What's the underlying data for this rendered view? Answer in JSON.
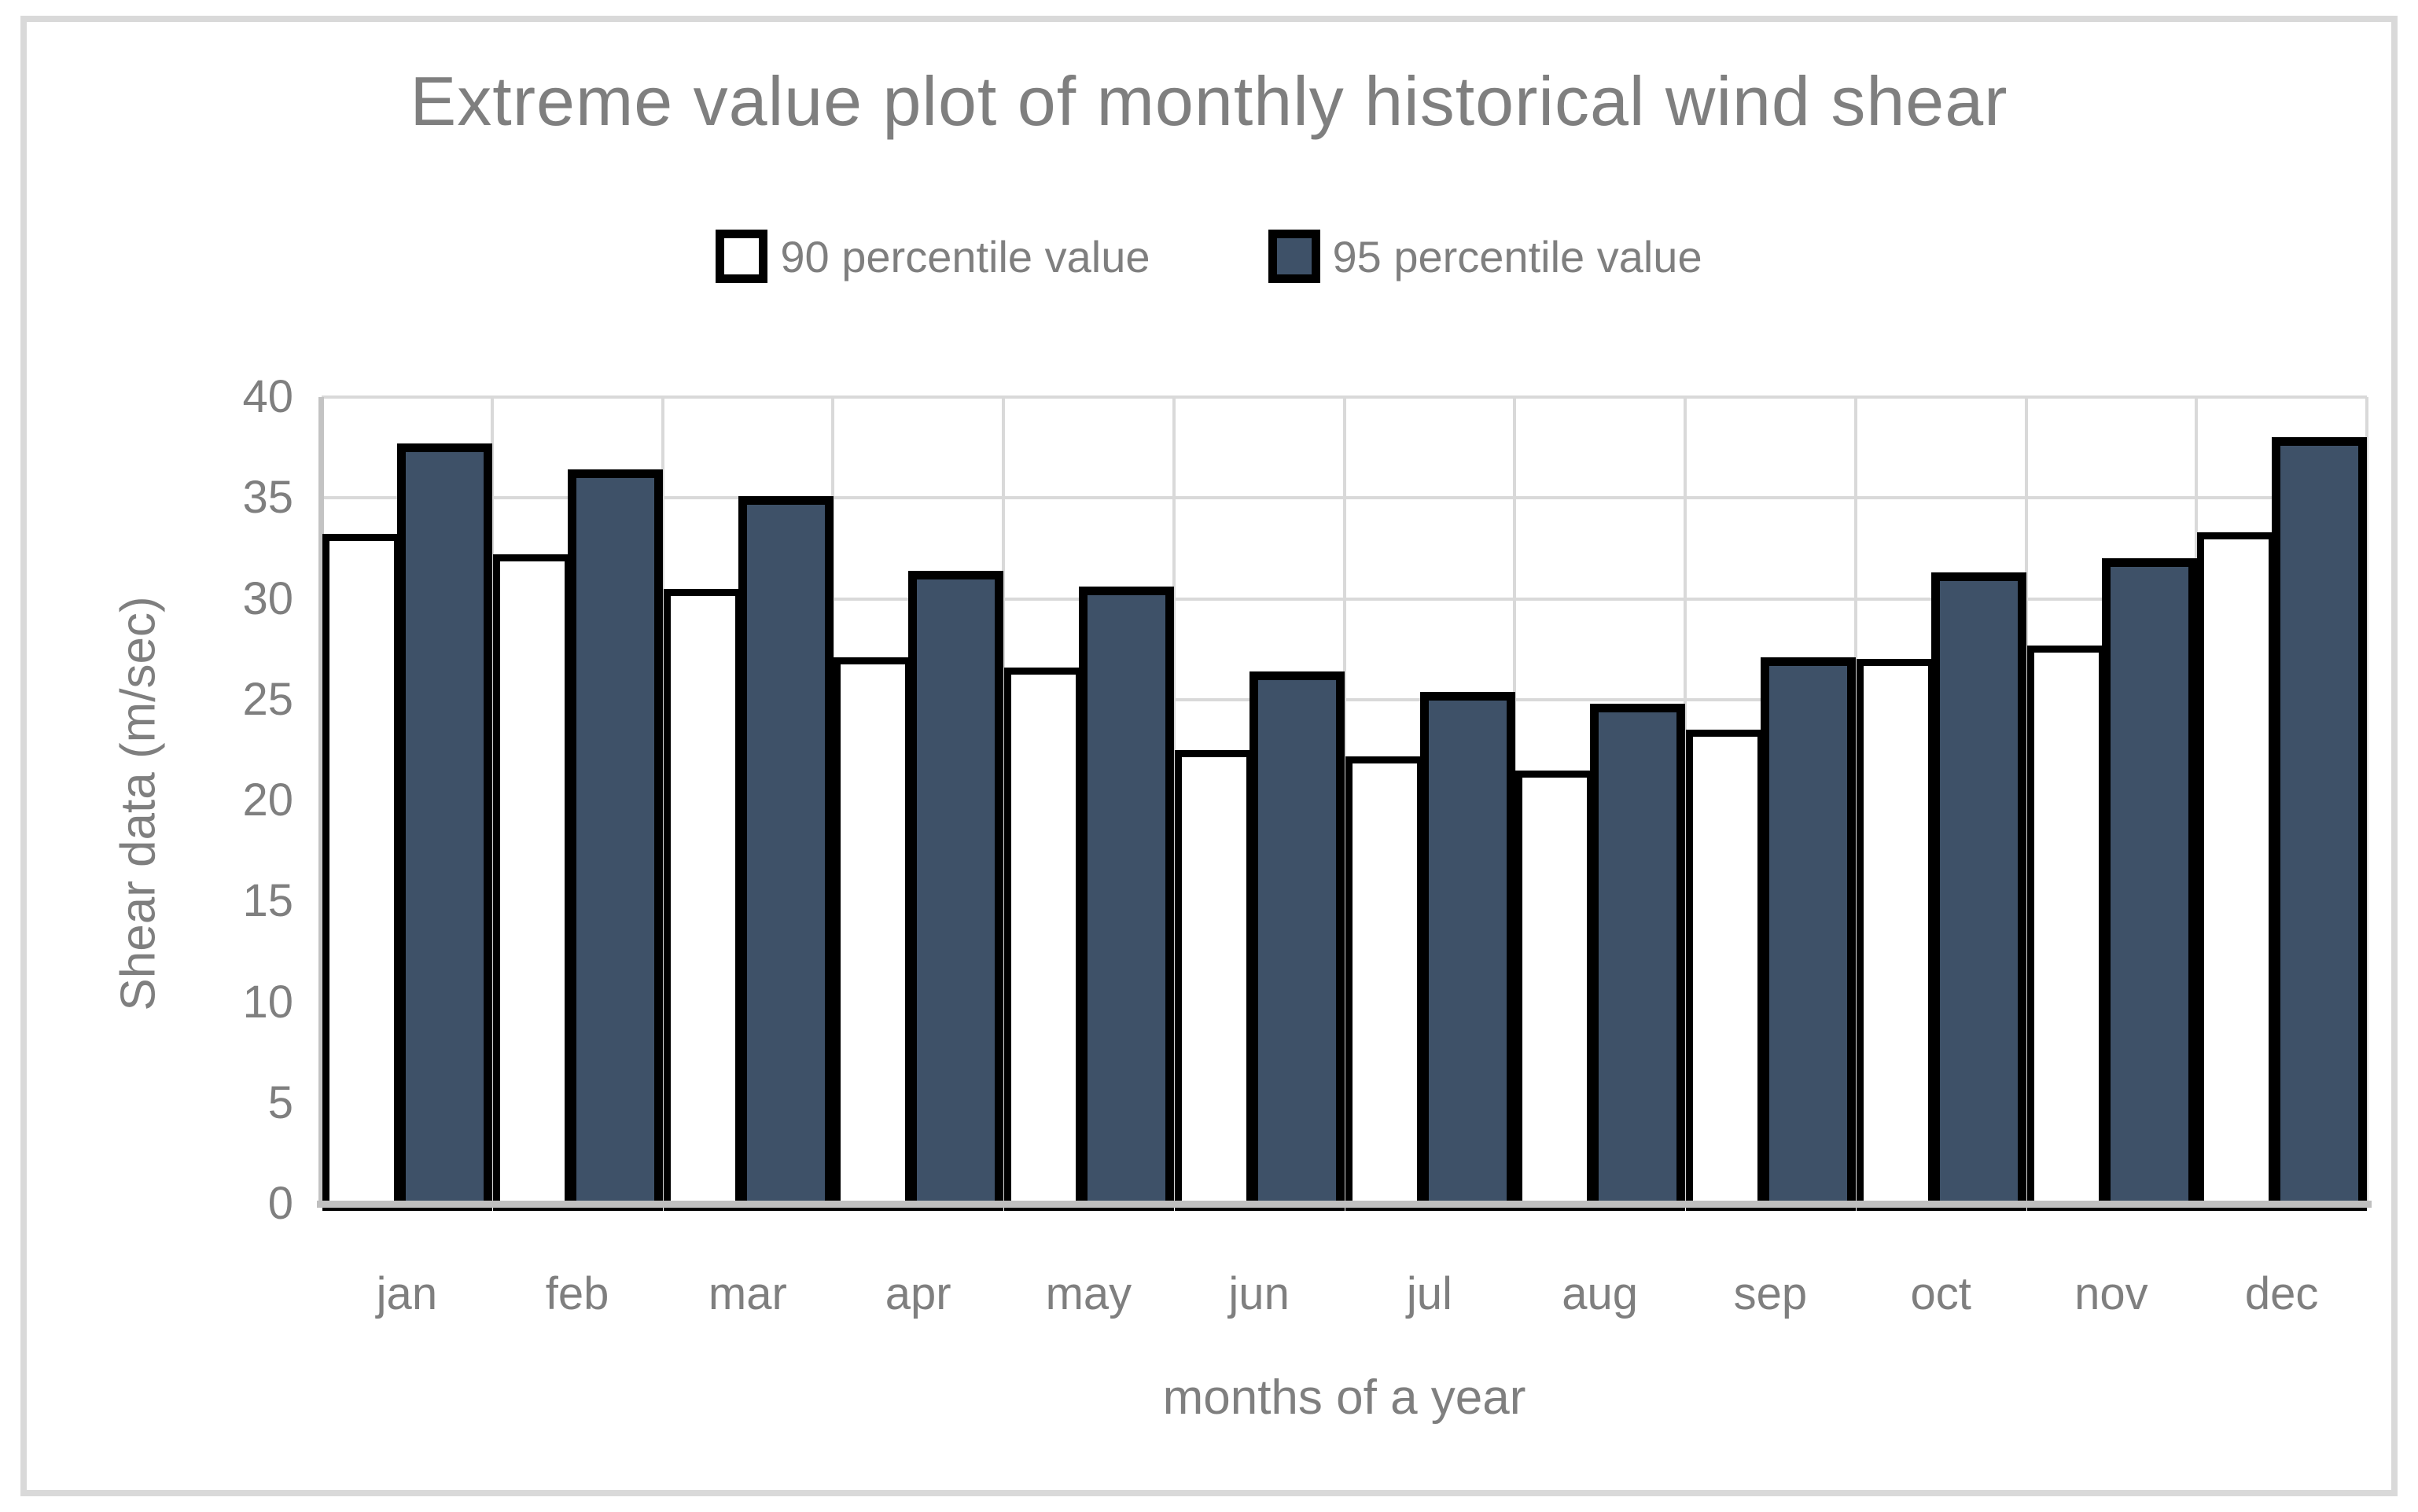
{
  "chart_data": {
    "type": "bar",
    "title": "Extreme value plot of monthly historical wind shear",
    "xlabel": "months of a year",
    "ylabel": "Shear data (m/sec)",
    "categories": [
      "jan",
      "feb",
      "mar",
      "apr",
      "may",
      "jun",
      "jul",
      "aug",
      "sep",
      "oct",
      "nov",
      "dec"
    ],
    "series": [
      {
        "name": "90 percentile value",
        "fill": "#ffffff",
        "border": "#000000",
        "values": [
          33.2,
          32.2,
          30.5,
          27.1,
          26.6,
          22.5,
          22.2,
          21.5,
          23.5,
          27.0,
          27.7,
          33.3
        ]
      },
      {
        "name": "95 percentile value",
        "fill": "#3e5168",
        "border": "#000000",
        "values": [
          37.7,
          36.4,
          35.1,
          31.4,
          30.6,
          26.4,
          25.4,
          24.8,
          27.1,
          31.3,
          32.0,
          38.0
        ]
      }
    ],
    "ylim": [
      0,
      40
    ],
    "ytick_step": 5,
    "grid": true,
    "legend_position": "top"
  },
  "colors": {
    "text": "#7f7f7f",
    "gridline": "#d9d9d9",
    "axis_line": "#bfbfbf",
    "frame_border": "#d9d9d9",
    "bar_dark": "#3e5168",
    "bar_light": "#ffffff",
    "bar_outline": "#000000"
  }
}
